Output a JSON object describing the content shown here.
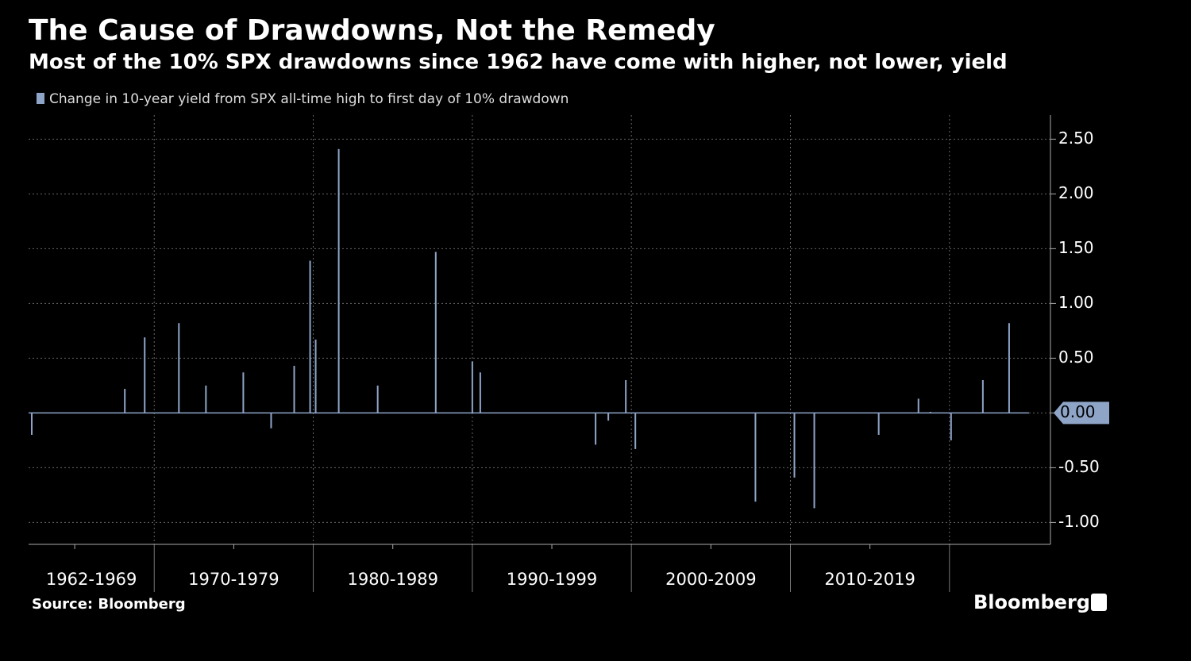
{
  "chart_data": {
    "type": "bar",
    "title": "The Cause of Drawdowns, Not the Remedy",
    "subtitle": "Most of the 10% SPX drawdowns since 1962 have come with higher, not lower, yield",
    "source": "Source: Bloomberg",
    "brand": "Bloomberg",
    "x": [
      1962.3,
      1968.15,
      1969.4,
      1971.55,
      1973.25,
      1975.6,
      1977.35,
      1978.8,
      1979.8,
      1980.15,
      1981.6,
      1984.05,
      1987.7,
      1990.0,
      1990.5,
      1997.75,
      1998.55,
      1999.65,
      2000.25,
      2007.8,
      2010.25,
      2011.5,
      2015.55,
      2018.05,
      2018.8,
      2020.1,
      2022.1,
      2023.75
    ],
    "series": [
      {
        "name": "Change in 10-year yield from SPX all-time high to first day of 10% drawdown",
        "color": "#8fa5c8",
        "values": [
          -0.2,
          0.22,
          0.69,
          0.82,
          0.25,
          0.37,
          -0.14,
          0.43,
          1.39,
          0.67,
          2.41,
          0.25,
          1.47,
          0.47,
          0.37,
          -0.29,
          -0.07,
          0.3,
          -0.33,
          -0.81,
          -0.59,
          -0.87,
          -0.2,
          0.13,
          0.01,
          -0.25,
          0.3,
          0.82
        ]
      }
    ],
    "xlim": [
      1962.1,
      2026.35
    ],
    "xticks": [
      {
        "value": 1965,
        "label": "1962-1969"
      },
      {
        "value": 1975,
        "label": "1970-1979"
      },
      {
        "value": 1985,
        "label": "1980-1989"
      },
      {
        "value": 1995,
        "label": "1990-1999"
      },
      {
        "value": 2005,
        "label": "2000-2009"
      },
      {
        "value": 2015,
        "label": "2010-2019"
      }
    ],
    "xgrid": [
      1970,
      1980,
      1990,
      2000,
      2010,
      2020
    ],
    "ylim": [
      -1.2,
      2.72
    ],
    "yticks": [
      {
        "value": -1,
        "label": "-1.00"
      },
      {
        "value": -0.5,
        "label": "-0.50"
      },
      {
        "value": 0,
        "label": "0.00"
      },
      {
        "value": 0.5,
        "label": "0.50"
      },
      {
        "value": 1,
        "label": "1.00"
      },
      {
        "value": 1.5,
        "label": "1.50"
      },
      {
        "value": 2,
        "label": "2.00"
      },
      {
        "value": 2.5,
        "label": "2.50"
      }
    ],
    "grid": true
  }
}
